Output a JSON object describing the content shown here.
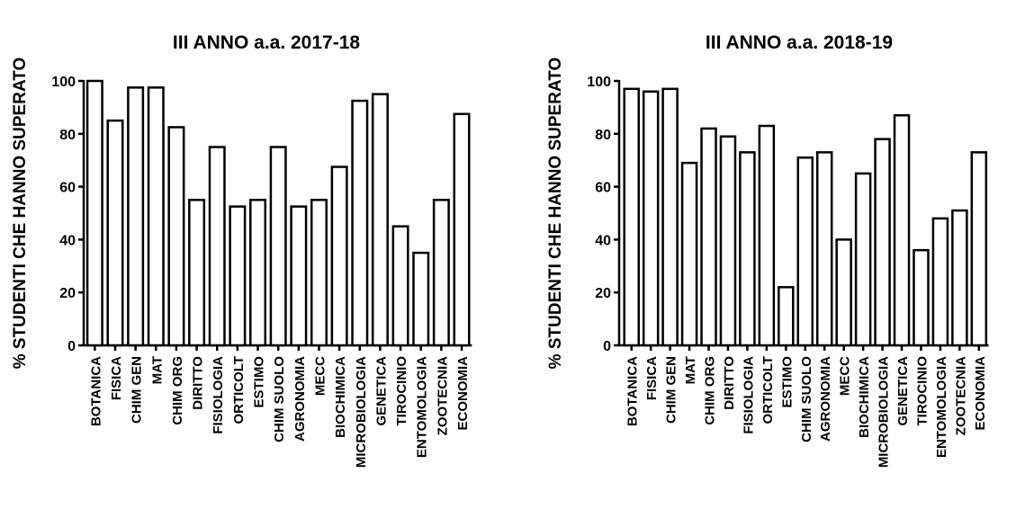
{
  "chart_data": [
    {
      "type": "bar",
      "title": "III ANNO a.a. 2017-18",
      "ylabel": "% STUDENTI CHE HANNO SUPERATO",
      "xlabel": "",
      "ylim": [
        0,
        100
      ],
      "yticks": [
        0,
        20,
        40,
        60,
        80,
        100
      ],
      "grid": false,
      "bar_fill": "#ffffff",
      "bar_stroke": "#000000",
      "categories": [
        "BOTANICA",
        "FISICA",
        "CHIM GEN",
        "MAT",
        "CHIM ORG",
        "DIRITTO",
        "FISIOLOGIA",
        "ORTICOLT",
        "ESTIMO",
        "CHIM SUOLO",
        "AGRONOMIA",
        "MECC",
        "BIOCHIMICA",
        "MICROBIOLOGIA",
        "GENETICA",
        "TIROCINIO",
        "ENTOMOLOGIA",
        "ZOOTECNIA",
        "ECONOMIA"
      ],
      "values": [
        100,
        85,
        97.5,
        97.5,
        82.5,
        55,
        75,
        52.5,
        55,
        75,
        52.5,
        55,
        67.5,
        92.5,
        95,
        45,
        35,
        55,
        87.5
      ]
    },
    {
      "type": "bar",
      "title": "III ANNO a.a. 2018-19",
      "ylabel": "% STUDENTI CHE HANNO SUPERATO",
      "xlabel": "",
      "ylim": [
        0,
        100
      ],
      "yticks": [
        0,
        20,
        40,
        60,
        80,
        100
      ],
      "grid": false,
      "bar_fill": "#ffffff",
      "bar_stroke": "#000000",
      "categories": [
        "BOTANICA",
        "FISICA",
        "CHIM GEN",
        "MAT",
        "CHIM ORG",
        "DIRITTO",
        "FISIOLOGIA",
        "ORTICOLT",
        "ESTIMO",
        "CHIM SUOLO",
        "AGRONOMIA",
        "MECC",
        "BIOCHIMICA",
        "MICROBIOLOGIA",
        "GENETICA",
        "TIROCINIO",
        "ENTOMOLOGIA",
        "ZOOTECNIA",
        "ECONOMIA"
      ],
      "values": [
        97,
        96,
        97,
        69,
        82,
        79,
        73,
        83,
        22,
        71,
        73,
        40,
        65,
        78,
        87,
        36,
        48,
        51,
        73
      ]
    }
  ]
}
